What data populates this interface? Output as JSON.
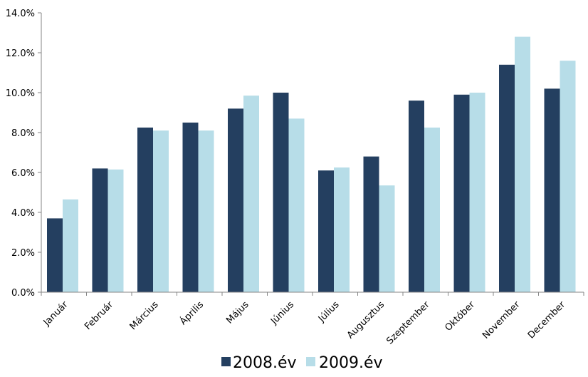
{
  "chart_data": {
    "type": "bar",
    "title": "",
    "xlabel": "",
    "ylabel": "",
    "categories": [
      "Január",
      "Február",
      "Március",
      "Április",
      "Május",
      "Június",
      "Július",
      "Augusztus",
      "Szeptember",
      "Október",
      "November",
      "December"
    ],
    "series": [
      {
        "name": "2008.év",
        "color": "#243f60",
        "values": [
          3.7,
          6.2,
          8.25,
          8.5,
          9.2,
          10.0,
          6.1,
          6.8,
          9.6,
          9.9,
          11.4,
          10.2
        ]
      },
      {
        "name": "2009.év",
        "color": "#b7dde8",
        "values": [
          4.65,
          6.15,
          8.1,
          8.1,
          9.85,
          8.7,
          6.25,
          5.35,
          8.25,
          10.0,
          12.8,
          11.6
        ]
      }
    ],
    "ylim": [
      0,
      14
    ],
    "yticks": [
      "0.0%",
      "2.0%",
      "4.0%",
      "6.0%",
      "8.0%",
      "10.0%",
      "12.0%",
      "14.0%"
    ],
    "ytick_values": [
      0,
      2,
      4,
      6,
      8,
      10,
      12,
      14
    ],
    "grid": false,
    "legend_position": "bottom"
  }
}
